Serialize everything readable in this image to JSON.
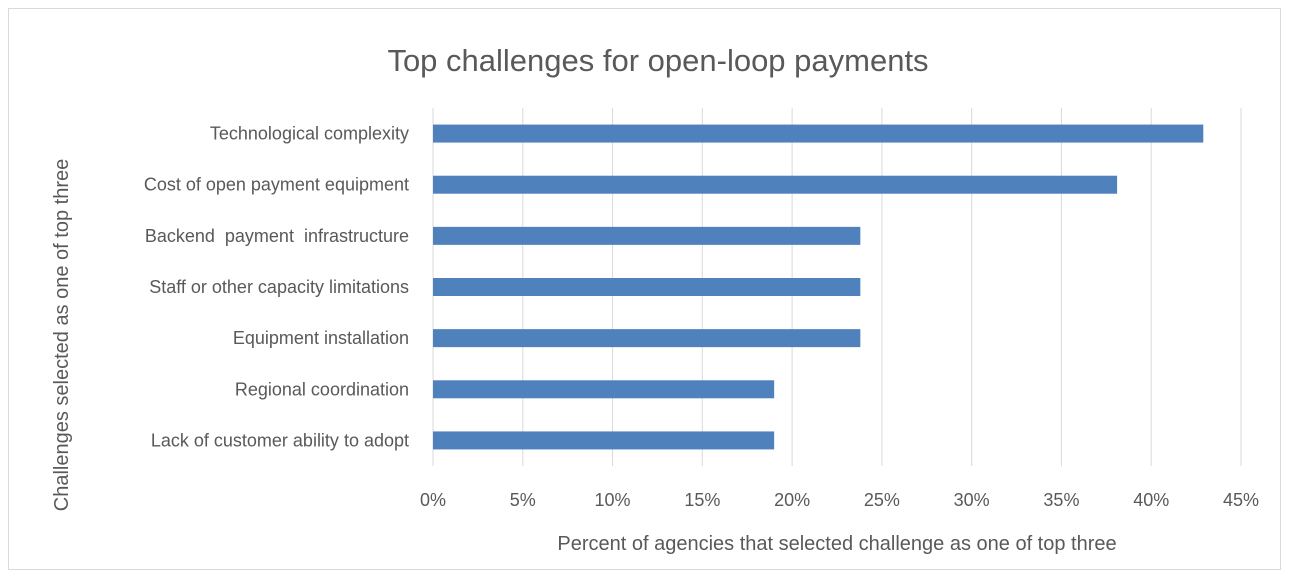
{
  "chart_data": {
    "type": "bar",
    "orientation": "horizontal",
    "title": "Top challenges for open-loop payments",
    "xlabel": "Percent of agencies that selected challenge as one of top three",
    "ylabel": "Challenges selected as one of top three",
    "categories": [
      "Technological complexity",
      "Cost of open payment equipment",
      "Backend  payment  infrastructure",
      "Staff or other capacity limitations",
      "Equipment installation",
      "Regional coordination",
      "Lack of customer ability to adopt"
    ],
    "values": [
      42.9,
      38.1,
      23.8,
      23.8,
      23.8,
      19.0,
      19.0
    ],
    "xlim": [
      0,
      45
    ],
    "xticks": [
      0,
      5,
      10,
      15,
      20,
      25,
      30,
      35,
      40,
      45
    ],
    "xtick_labels": [
      "0%",
      "5%",
      "10%",
      "15%",
      "20%",
      "25%",
      "30%",
      "35%",
      "40%",
      "45%"
    ],
    "grid": "vertical",
    "bar_color": "#4f81bd"
  }
}
